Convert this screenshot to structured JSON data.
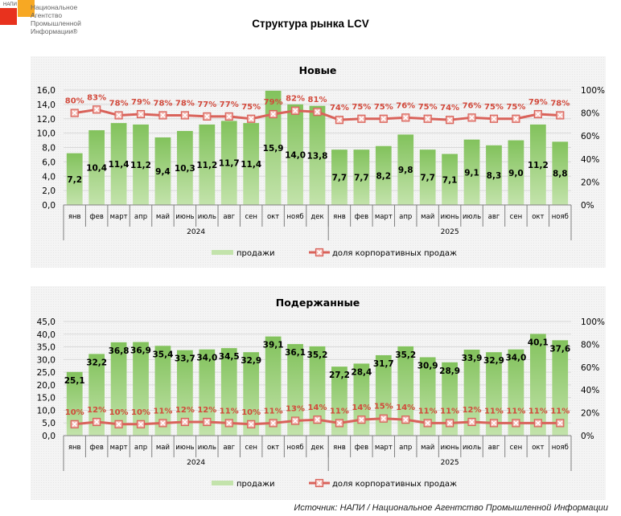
{
  "logo": {
    "short": "НАПИ",
    "org_lines": [
      "Национальное",
      "Агентство",
      "Промышленной",
      "Информации®"
    ]
  },
  "title": "Структура рынка LCV",
  "source": "Источник: НАПИ / Национальное Агентство Промышленной Информации",
  "colors": {
    "bar_top": "#82c25c",
    "bar_bottom": "#c3e3ab",
    "line": "#d9625a",
    "label_pct": "#d24a3c",
    "grid": "#d9d9d9",
    "axis": "#7f7f7f"
  },
  "chart_data": [
    {
      "type": "bar",
      "title": "Новые",
      "categories": [
        "янв",
        "фев",
        "март",
        "апр",
        "май",
        "июнь",
        "июль",
        "авг",
        "сен",
        "окт",
        "нояб",
        "дек",
        "янв",
        "фев",
        "март",
        "апр",
        "май",
        "июнь",
        "июль",
        "авг",
        "сен",
        "окт",
        "нояб"
      ],
      "groups": [
        {
          "label": "2024",
          "count": 12
        },
        {
          "label": "2025",
          "count": 11
        }
      ],
      "series": [
        {
          "name": "продажи",
          "type": "bar",
          "axis": "left",
          "values": [
            7.2,
            10.4,
            11.4,
            11.2,
            9.4,
            10.3,
            11.2,
            11.7,
            11.4,
            15.9,
            14.0,
            13.8,
            7.7,
            7.7,
            8.2,
            9.8,
            7.7,
            7.1,
            9.1,
            8.3,
            9.0,
            11.2,
            8.8
          ],
          "labels": [
            "7,2",
            "10,4",
            "11,4",
            "11,2",
            "9,4",
            "10,3",
            "11,2",
            "11,7",
            "11,4",
            "15,9",
            "14,0",
            "13,8",
            "7,7",
            "7,7",
            "8,2",
            "9,8",
            "7,7",
            "7,1",
            "9,1",
            "8,3",
            "9,0",
            "11,2",
            "8,8"
          ]
        },
        {
          "name": "доля корпоративных продаж",
          "type": "line",
          "axis": "right",
          "values": [
            80,
            83,
            78,
            79,
            78,
            78,
            77,
            77,
            75,
            79,
            82,
            81,
            74,
            75,
            75,
            76,
            75,
            74,
            76,
            75,
            75,
            79,
            78
          ],
          "labels": [
            "80%",
            "83%",
            "78%",
            "79%",
            "78%",
            "78%",
            "77%",
            "77%",
            "75%",
            "79%",
            "82%",
            "81%",
            "74%",
            "75%",
            "75%",
            "76%",
            "75%",
            "74%",
            "76%",
            "75%",
            "75%",
            "79%",
            "78%"
          ]
        }
      ],
      "ylim": [
        0,
        16
      ],
      "yticks": [
        "0,0",
        "2,0",
        "4,0",
        "6,0",
        "8,0",
        "10,0",
        "12,0",
        "14,0",
        "16,0"
      ],
      "y2lim": [
        0,
        100
      ],
      "y2ticks": [
        "0%",
        "20%",
        "40%",
        "60%",
        "80%",
        "100%"
      ],
      "grid": true,
      "legend": "bottom"
    },
    {
      "type": "bar",
      "title": "Подержанные",
      "categories": [
        "янв",
        "фев",
        "март",
        "апр",
        "май",
        "июнь",
        "июль",
        "авг",
        "сен",
        "окт",
        "нояб",
        "дек",
        "янв",
        "фев",
        "март",
        "апр",
        "май",
        "июнь",
        "июль",
        "авг",
        "сен",
        "окт",
        "нояб"
      ],
      "groups": [
        {
          "label": "2024",
          "count": 12
        },
        {
          "label": "2025",
          "count": 11
        }
      ],
      "series": [
        {
          "name": "продажи",
          "type": "bar",
          "axis": "left",
          "values": [
            25.1,
            32.2,
            36.8,
            36.9,
            35.4,
            33.7,
            34.0,
            34.5,
            32.9,
            39.1,
            36.1,
            35.2,
            27.2,
            28.4,
            31.7,
            35.2,
            30.9,
            28.9,
            33.9,
            32.9,
            34.0,
            40.1,
            37.6
          ],
          "labels": [
            "25,1",
            "32,2",
            "36,8",
            "36,9",
            "35,4",
            "33,7",
            "34,0",
            "34,5",
            "32,9",
            "39,1",
            "36,1",
            "35,2",
            "27,2",
            "28,4",
            "31,7",
            "35,2",
            "30,9",
            "28,9",
            "33,9",
            "32,9",
            "34,0",
            "40,1",
            "37,6"
          ]
        },
        {
          "name": "доля корпоративных продаж",
          "type": "line",
          "axis": "right",
          "values": [
            10,
            12,
            10,
            10,
            11,
            12,
            12,
            11,
            10,
            11,
            13,
            14,
            11,
            14,
            15,
            14,
            11,
            11,
            12,
            11,
            11,
            11,
            11
          ],
          "labels": [
            "10%",
            "12%",
            "10%",
            "10%",
            "11%",
            "12%",
            "12%",
            "11%",
            "10%",
            "11%",
            "13%",
            "14%",
            "11%",
            "14%",
            "15%",
            "14%",
            "11%",
            "11%",
            "12%",
            "11%",
            "11%",
            "11%",
            "11%"
          ]
        }
      ],
      "ylim": [
        0,
        45
      ],
      "yticks": [
        "0,0",
        "5,0",
        "10,0",
        "15,0",
        "20,0",
        "25,0",
        "30,0",
        "35,0",
        "40,0",
        "45,0"
      ],
      "y2lim": [
        0,
        100
      ],
      "y2ticks": [
        "0%",
        "20%",
        "40%",
        "60%",
        "80%",
        "100%"
      ],
      "grid": true,
      "legend": "bottom"
    }
  ]
}
